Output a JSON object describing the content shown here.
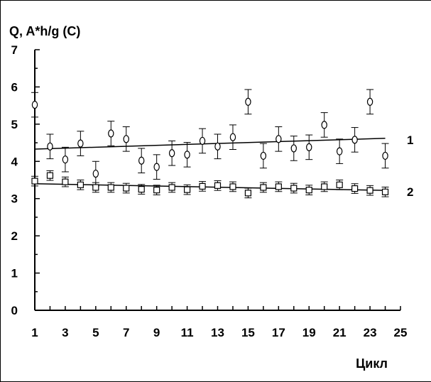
{
  "chart_data": {
    "type": "scatter",
    "ylabel": "Q, A*h/g (C)",
    "xlabel": "Цикл",
    "xlim": [
      1,
      25
    ],
    "ylim": [
      0,
      7
    ],
    "x_ticks": [
      1,
      3,
      5,
      7,
      9,
      11,
      13,
      15,
      17,
      19,
      21,
      23,
      25
    ],
    "y_ticks": [
      0,
      1,
      2,
      3,
      4,
      5,
      6,
      7
    ],
    "grid": false,
    "series": [
      {
        "name": "1",
        "marker": "circle",
        "x": [
          1,
          2,
          3,
          4,
          5,
          6,
          7,
          8,
          9,
          10,
          11,
          12,
          13,
          14,
          15,
          16,
          17,
          18,
          19,
          20,
          21,
          22,
          23,
          24
        ],
        "y": [
          5.52,
          4.4,
          4.05,
          4.48,
          3.67,
          4.75,
          4.6,
          4.02,
          3.85,
          4.22,
          4.18,
          4.55,
          4.4,
          4.65,
          5.6,
          4.15,
          4.6,
          4.35,
          4.38,
          4.98,
          4.27,
          4.58,
          5.6,
          4.15
        ],
        "error": 0.33,
        "trend": [
          4.33,
          4.62
        ]
      },
      {
        "name": "2",
        "marker": "square",
        "x": [
          1,
          2,
          3,
          4,
          5,
          6,
          7,
          8,
          9,
          10,
          11,
          12,
          13,
          14,
          15,
          16,
          17,
          18,
          19,
          20,
          21,
          22,
          23,
          24
        ],
        "y": [
          3.47,
          3.62,
          3.45,
          3.37,
          3.3,
          3.3,
          3.28,
          3.25,
          3.23,
          3.3,
          3.24,
          3.33,
          3.35,
          3.32,
          3.15,
          3.3,
          3.32,
          3.28,
          3.23,
          3.32,
          3.37,
          3.27,
          3.22,
          3.18
        ],
        "error": 0.13,
        "trend": [
          3.4,
          3.22
        ]
      }
    ],
    "colors": {
      "line": "#000000",
      "marker_fill": "#ffffff"
    }
  }
}
